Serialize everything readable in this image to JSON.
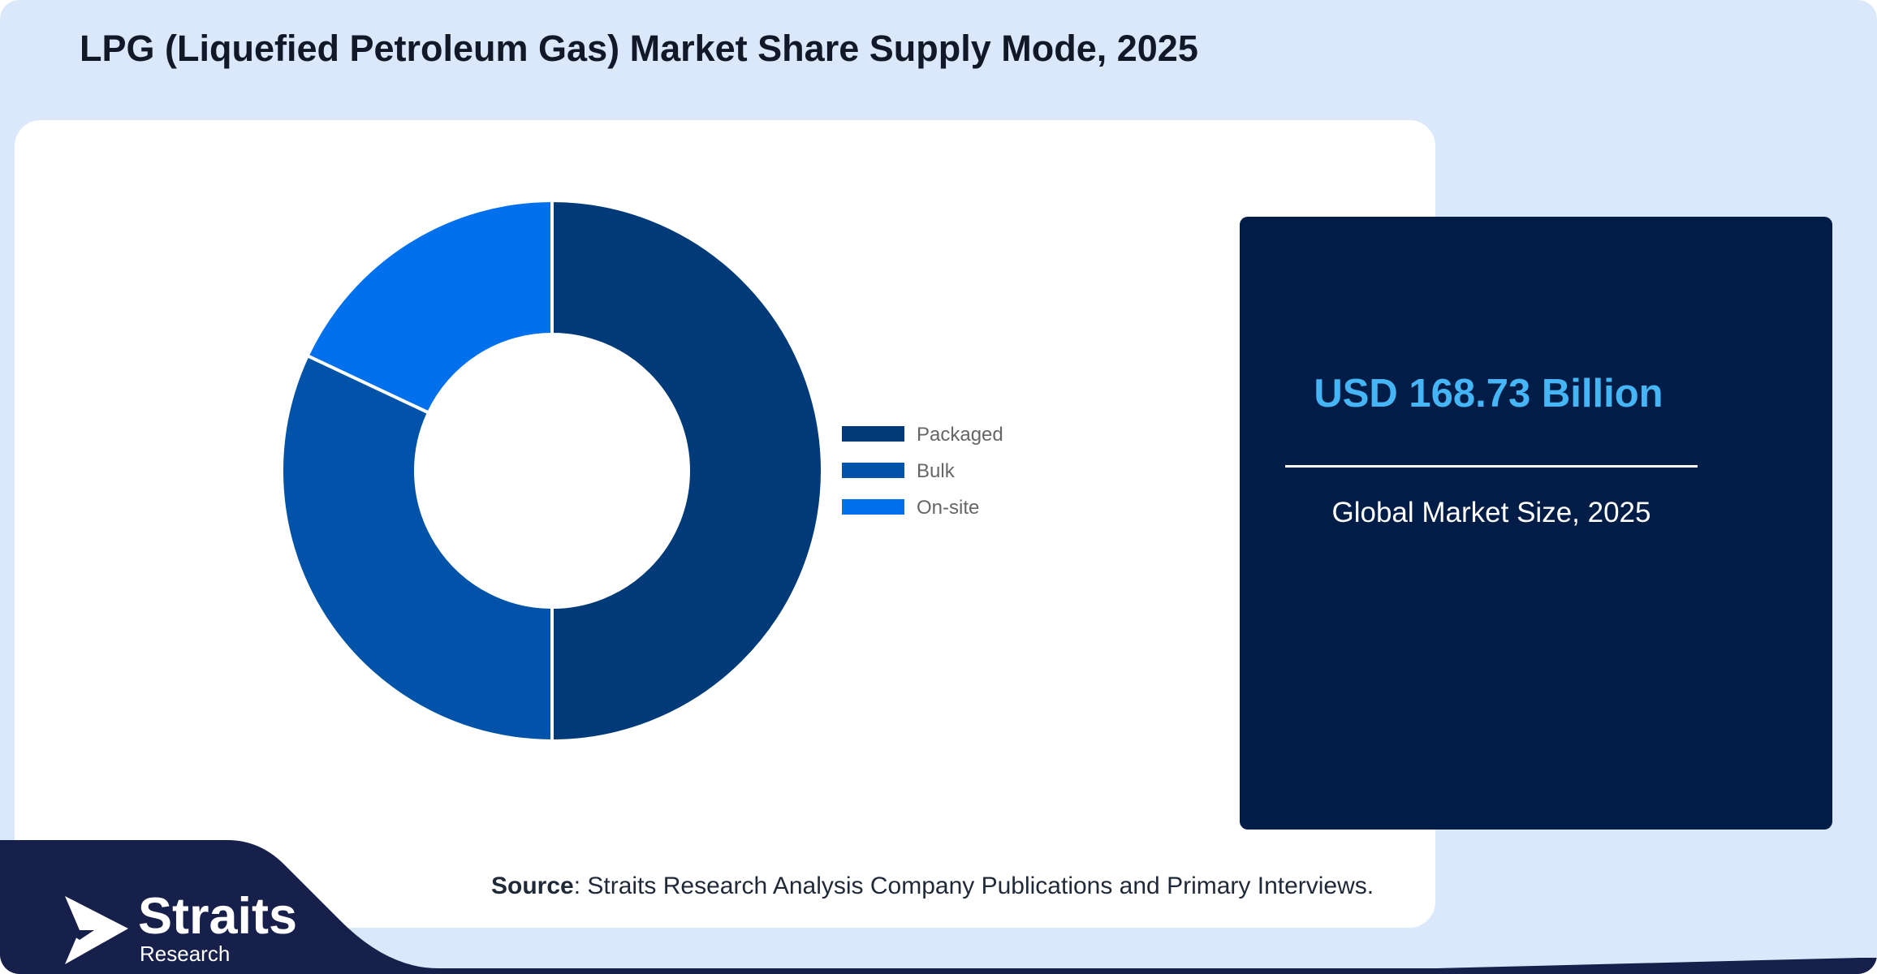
{
  "title": "LPG (Liquefied Petroleum Gas) Market Share Supply Mode, 2025",
  "chart_data": {
    "type": "pie",
    "variant": "donut",
    "categories": [
      "Packaged",
      "Bulk",
      "On-site"
    ],
    "values": [
      50,
      32,
      18
    ],
    "unit": "%",
    "colors": [
      "#003a78",
      "#0053a8",
      "#0070ec"
    ],
    "legend_position": "right"
  },
  "market": {
    "value": "USD 168.73 Billion",
    "caption": "Global Market Size, 2025",
    "value_color": "#45b5f5",
    "box_color": "#001d47"
  },
  "source": {
    "prefix": "Source",
    "text": ": Straits Research Analysis Company Publications and Primary Interviews."
  },
  "logo": {
    "name": "Straits",
    "sub": "Research",
    "icon": "arrow-bird-icon"
  },
  "theme": {
    "background": "#dbe7fa",
    "footer": "#16204a"
  }
}
